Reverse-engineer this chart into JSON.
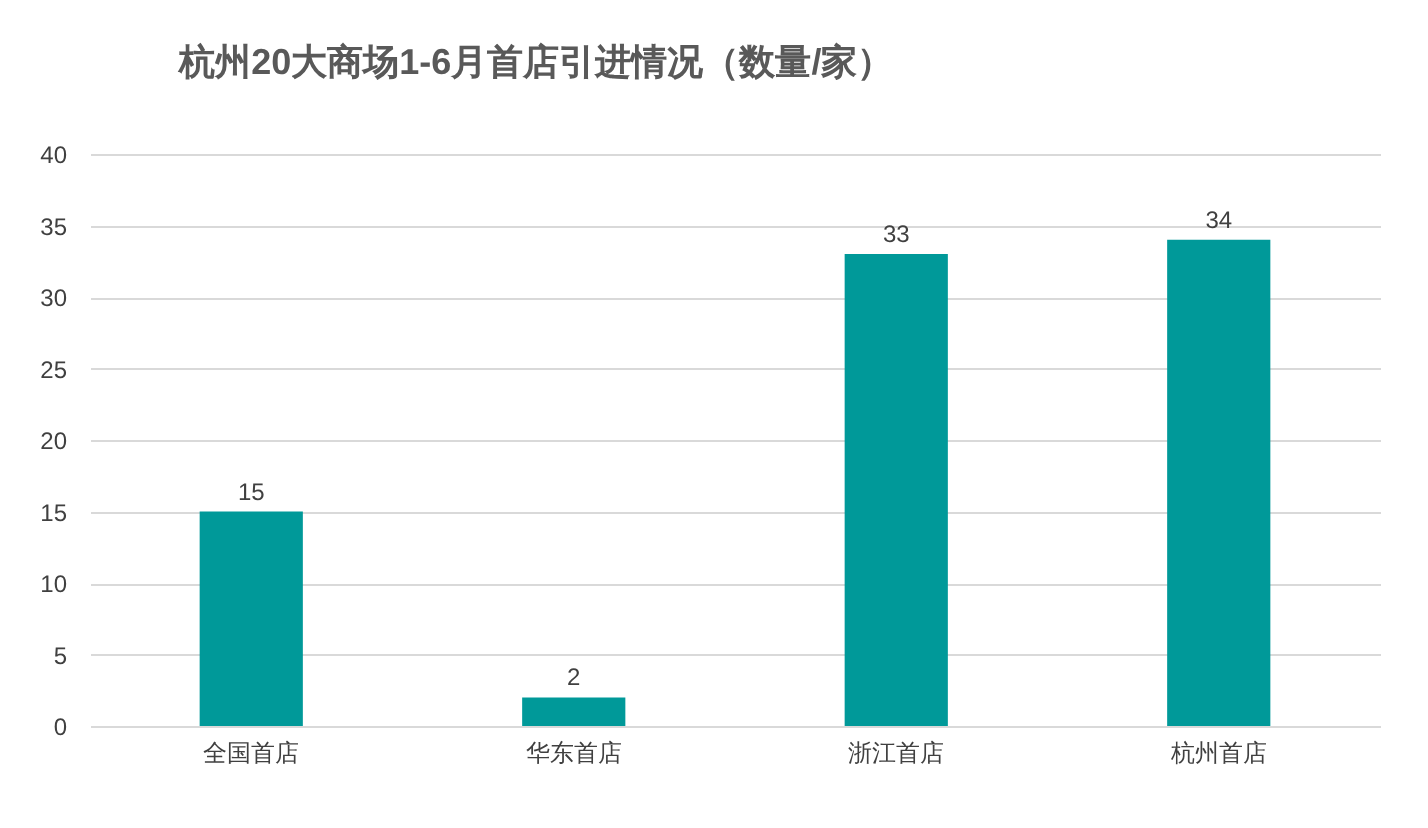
{
  "chart_data": {
    "type": "bar",
    "title": "杭州20大商场1-6月首店引进情况（数量/家）",
    "categories": [
      "全国首店",
      "华东首店",
      "浙江首店",
      "杭州首店"
    ],
    "values": [
      15,
      2,
      33,
      34
    ],
    "color": "#009999",
    "ylim": [
      0,
      40
    ],
    "yticks": [
      0,
      5,
      10,
      15,
      20,
      25,
      30,
      35,
      40
    ],
    "grid": "y",
    "data_labels": true
  }
}
